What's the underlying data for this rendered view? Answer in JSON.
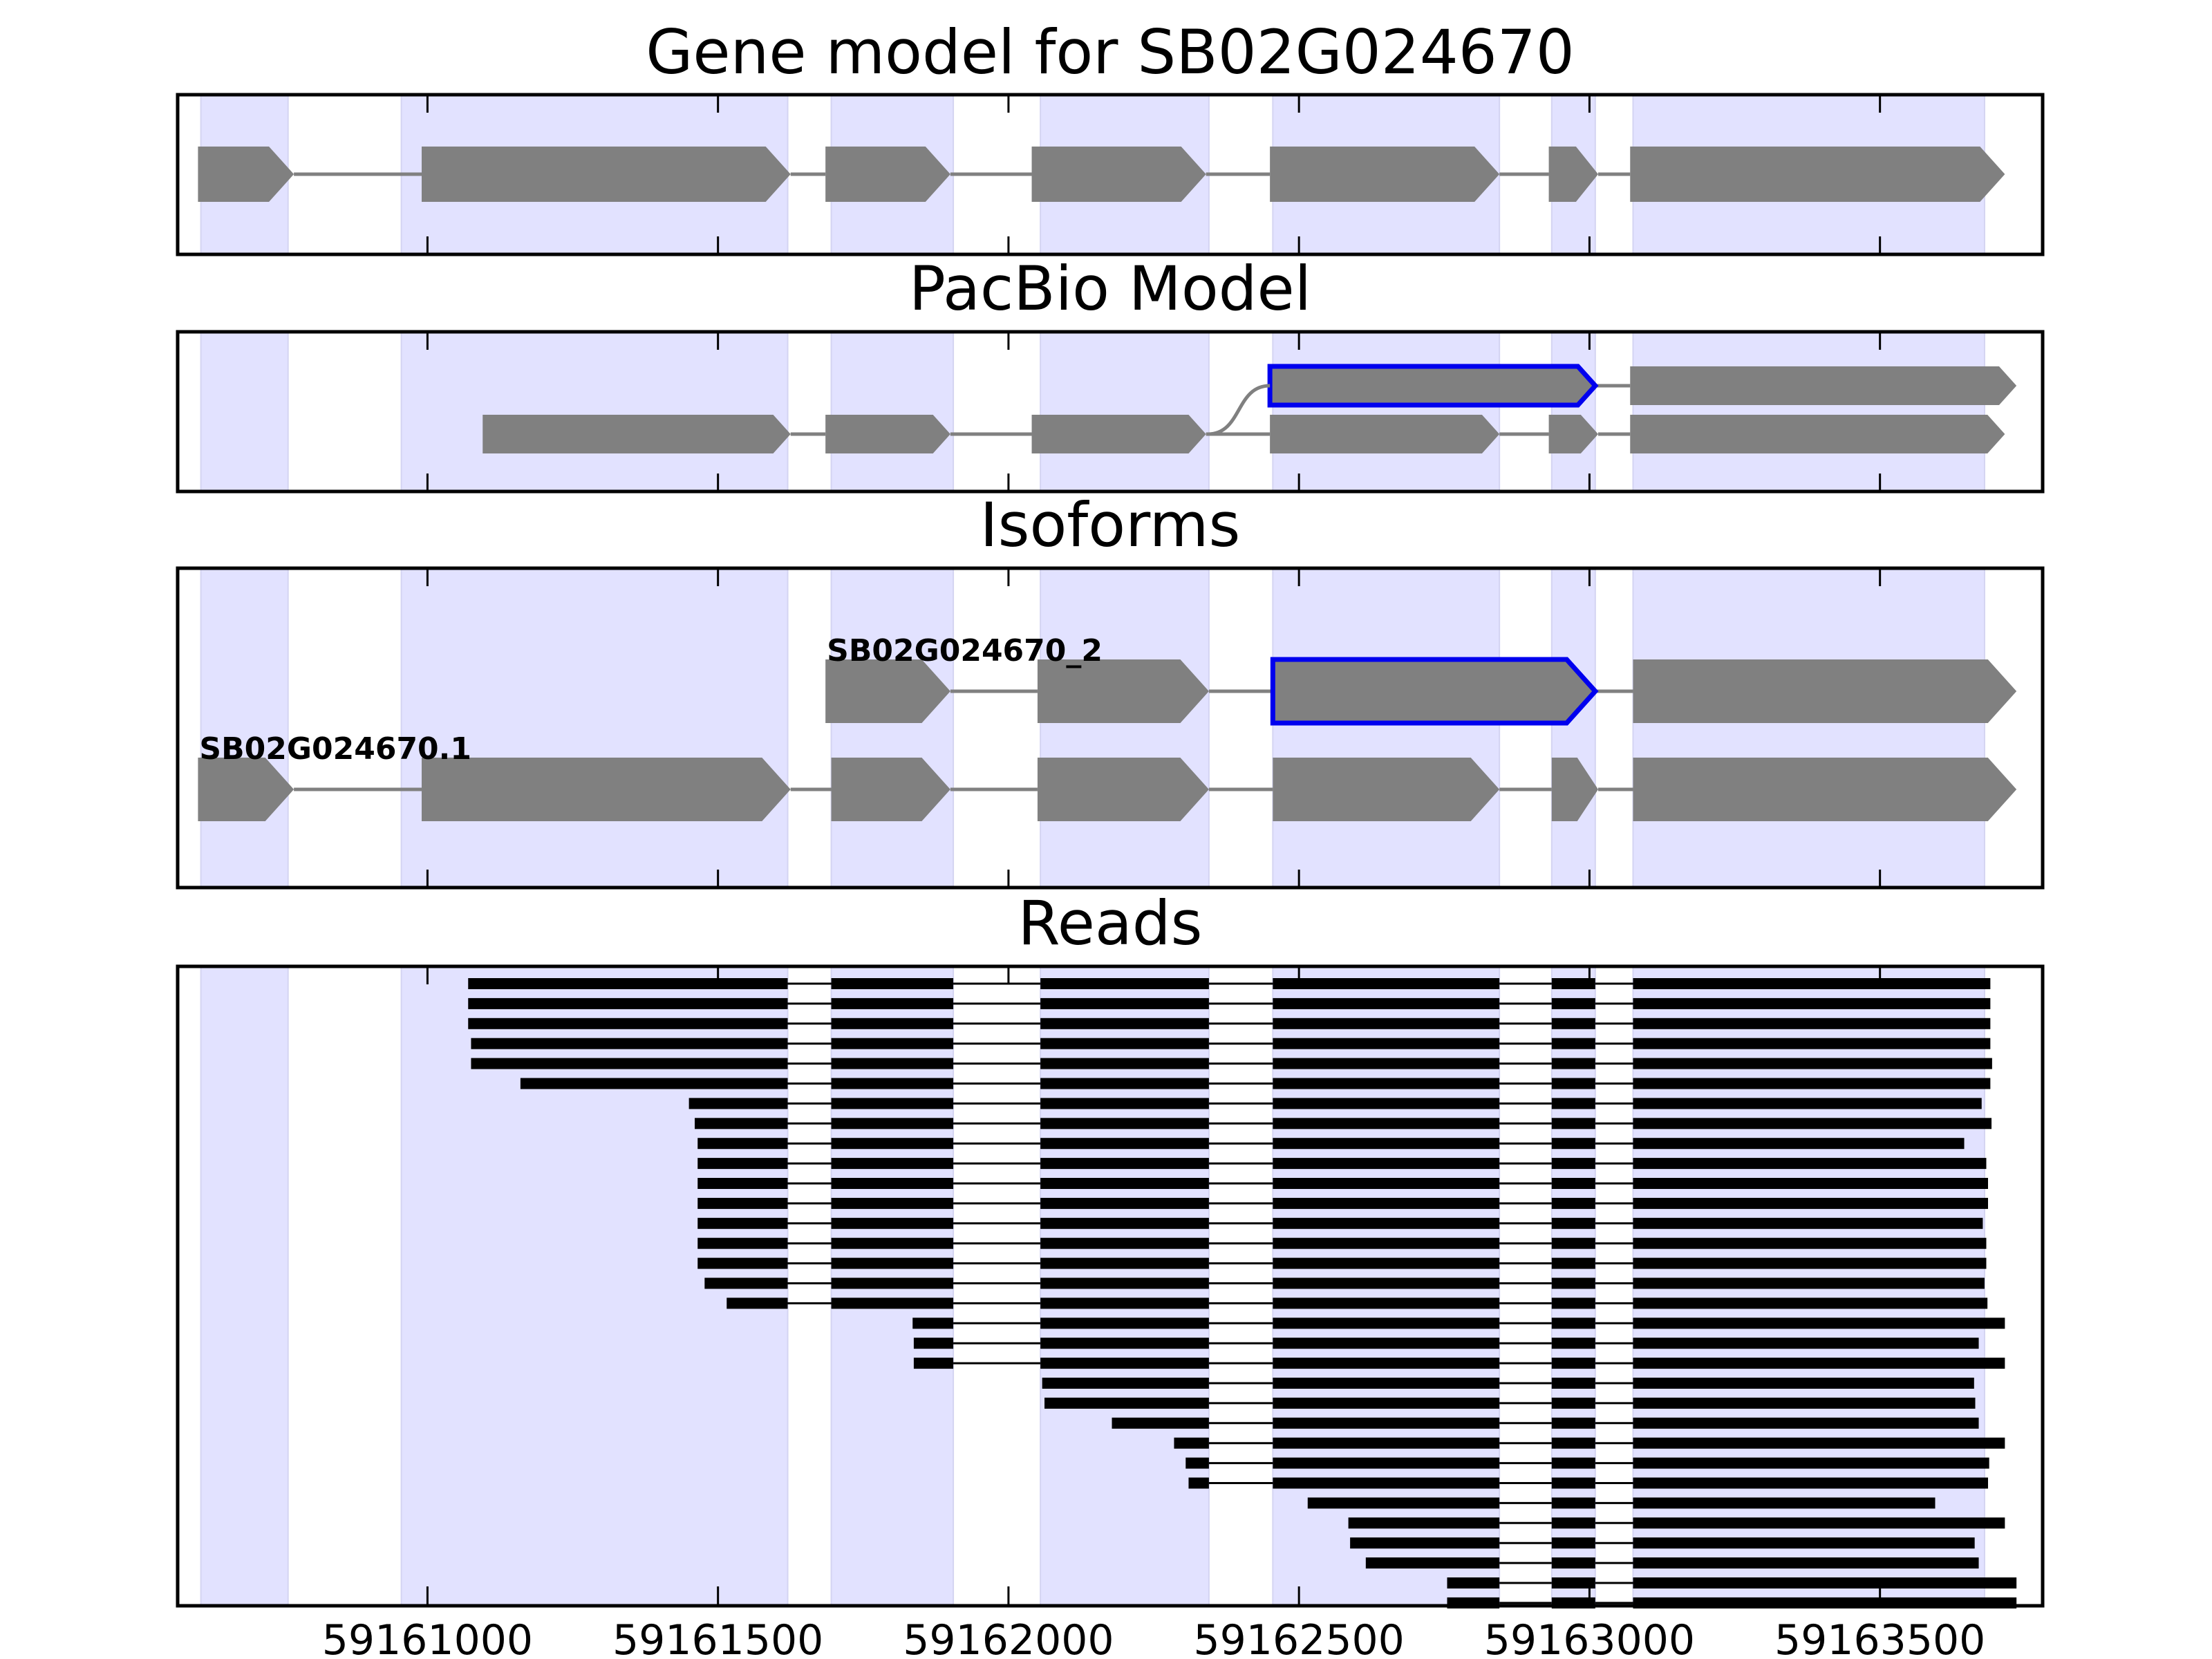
{
  "chart_data": {
    "type": "gene-structure",
    "xlim": [
      59160570,
      59163780
    ],
    "x_ticks": [
      59161000,
      59161500,
      59162000,
      59162500,
      59163000,
      59163500
    ],
    "x_tick_labels": [
      "59161000",
      "59161500",
      "59162000",
      "59162500",
      "59163000",
      "59163500"
    ],
    "exon_regions": [
      [
        59160610,
        59160760
      ],
      [
        59160955,
        59161620
      ],
      [
        59161695,
        59161905
      ],
      [
        59162055,
        59162345
      ],
      [
        59162455,
        59162845
      ],
      [
        59162935,
        59163010
      ],
      [
        59163075,
        59163680
      ]
    ],
    "colors": {
      "exon": "#808080",
      "highlight": "#0000ee",
      "read": "#000000",
      "region": "#e2e2ff",
      "intron": "#808080"
    },
    "panels": [
      {
        "title": "Gene model for SB02G024670",
        "tracks": [
          {
            "label": "",
            "highlight": -1,
            "exons": [
              [
                59160605,
                59160770
              ],
              [
                59160990,
                59161625
              ],
              [
                59161685,
                59161900
              ],
              [
                59162040,
                59162340
              ],
              [
                59162450,
                59162845
              ],
              [
                59162930,
                59163015
              ],
              [
                59163070,
                59163715
              ]
            ]
          }
        ]
      },
      {
        "title": "PacBio Model",
        "tracks": [
          {
            "label": "",
            "highlight": 0,
            "exons": [
              [
                59162450,
                59163010
              ],
              [
                59163070,
                59163735
              ]
            ]
          },
          {
            "label": "",
            "highlight": -1,
            "exons": [
              [
                59161095,
                59161625
              ],
              [
                59161685,
                59161900
              ],
              [
                59162040,
                59162340
              ],
              [
                59162450,
                59162845
              ],
              [
                59162930,
                59163015
              ],
              [
                59163070,
                59163715
              ]
            ]
          }
        ]
      },
      {
        "title": "Isoforms",
        "tracks": [
          {
            "label": "SB02G024670_2",
            "highlight": 2,
            "exons": [
              [
                59161685,
                59161900
              ],
              [
                59162050,
                59162345
              ],
              [
                59162455,
                59163010
              ],
              [
                59163075,
                59163735
              ]
            ]
          },
          {
            "label": "SB02G024670.1",
            "highlight": -1,
            "exons": [
              [
                59160605,
                59160770
              ],
              [
                59160990,
                59161625
              ],
              [
                59161695,
                59161900
              ],
              [
                59162050,
                59162345
              ],
              [
                59162455,
                59162845
              ],
              [
                59162935,
                59163015
              ],
              [
                59163075,
                59163735
              ]
            ]
          }
        ]
      }
    ],
    "reads_panel": {
      "title": "Reads",
      "reads": [
        [
          59161070,
          59163690
        ],
        [
          59161070,
          59163690
        ],
        [
          59161070,
          59163690
        ],
        [
          59161075,
          59163690
        ],
        [
          59161075,
          59163693
        ],
        [
          59161160,
          59163690
        ],
        [
          59161450,
          59163675
        ],
        [
          59161460,
          59163692
        ],
        [
          59161465,
          59163645
        ],
        [
          59161465,
          59163683
        ],
        [
          59161465,
          59163686
        ],
        [
          59161465,
          59163686
        ],
        [
          59161465,
          59163677
        ],
        [
          59161465,
          59163683
        ],
        [
          59161465,
          59163683
        ],
        [
          59161477,
          59163680
        ],
        [
          59161515,
          59163685
        ],
        [
          59161835,
          59163715
        ],
        [
          59161837,
          59163670
        ],
        [
          59161837,
          59163715
        ],
        [
          59162058,
          59163662
        ],
        [
          59162062,
          59163664
        ],
        [
          59162178,
          59163670
        ],
        [
          59162285,
          59163715
        ],
        [
          59162305,
          59163688
        ],
        [
          59162310,
          59163686
        ],
        [
          59162515,
          59163595
        ],
        [
          59162585,
          59163715
        ],
        [
          59162588,
          59163663
        ],
        [
          59162615,
          59163670
        ],
        [
          59162755,
          59163735
        ],
        [
          59162755,
          59163735
        ]
      ]
    }
  }
}
